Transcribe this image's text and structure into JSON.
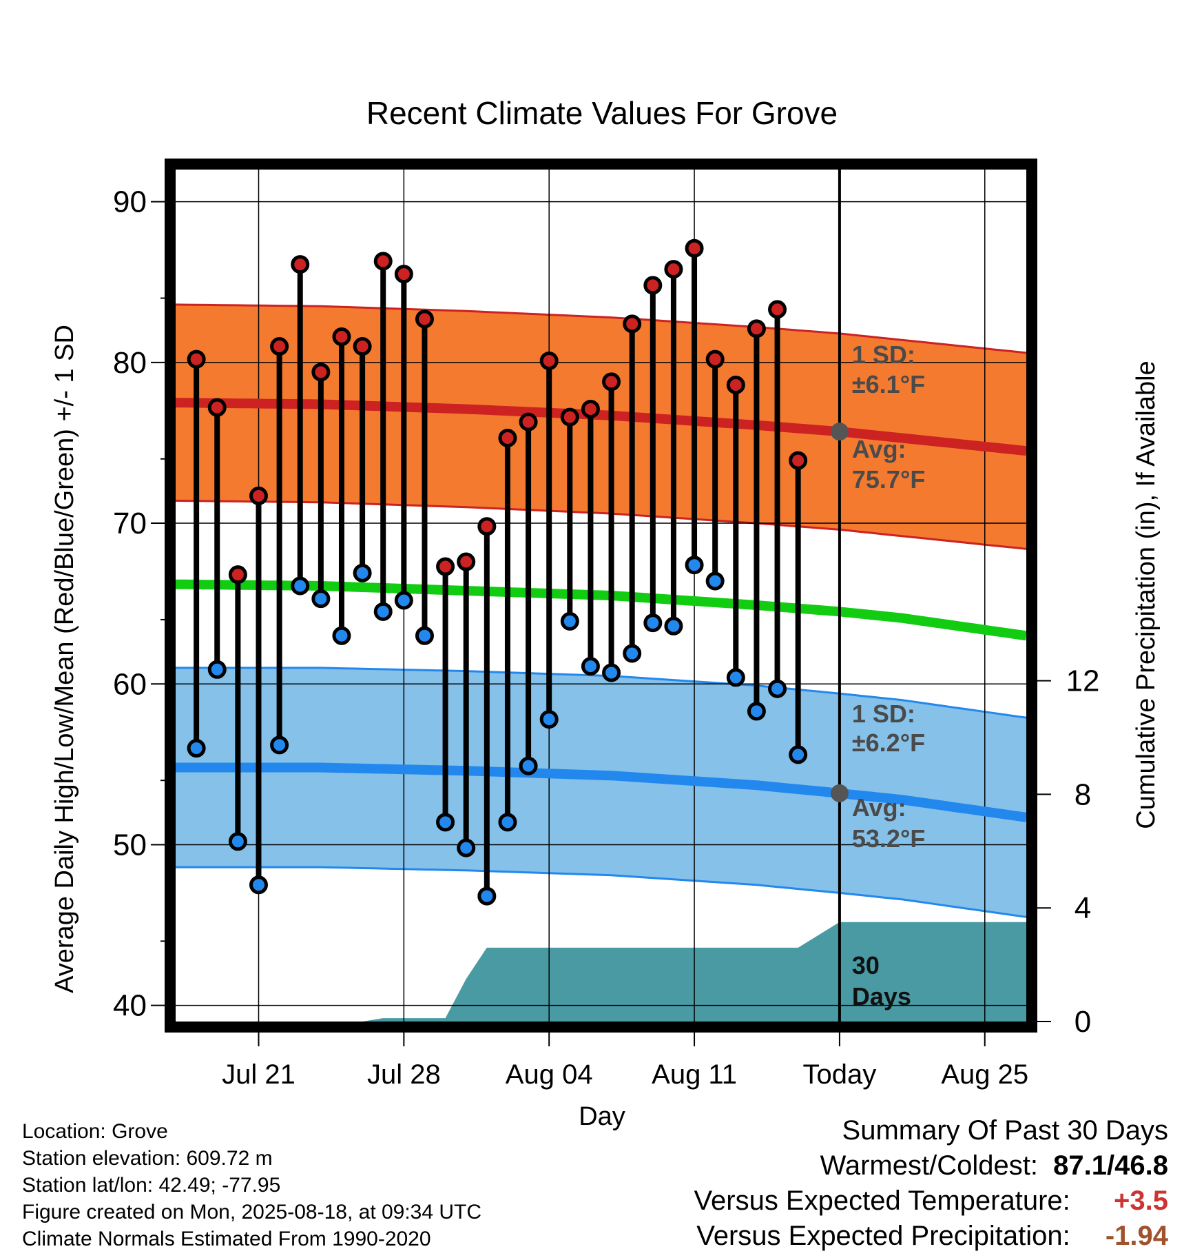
{
  "chart_data": {
    "type": "line",
    "title": "Recent Climate Values For Grove",
    "xlabel": "Day",
    "ylabel": "Average Daily High/Low/Mean (Red/Blue/Green) +/- 1 SD",
    "y2label": "Cumulative Precipitation (in), If Available",
    "ylim": [
      39,
      92
    ],
    "y2lim": [
      0,
      30
    ],
    "x_ticks": [
      {
        "date": "2025-07-21",
        "label": "Jul 21"
      },
      {
        "date": "2025-07-28",
        "label": "Jul 28"
      },
      {
        "date": "2025-08-04",
        "label": "Aug 04"
      },
      {
        "date": "2025-08-11",
        "label": "Aug 11"
      },
      {
        "date": "2025-08-18",
        "label": "Today"
      },
      {
        "date": "2025-08-25",
        "label": "Aug 25"
      }
    ],
    "x_range": [
      "2025-07-17",
      "2025-08-27"
    ],
    "y_ticks": [
      40,
      50,
      60,
      70,
      80,
      90
    ],
    "y2_ticks": [
      0,
      4,
      8,
      12
    ],
    "grid": true,
    "today": "2025-08-18",
    "normals": {
      "x": [
        "2025-07-17",
        "2025-07-24",
        "2025-07-31",
        "2025-08-07",
        "2025-08-14",
        "2025-08-18",
        "2025-08-21",
        "2025-08-27"
      ],
      "high_mean": [
        77.5,
        77.4,
        77.1,
        76.7,
        76.1,
        75.7,
        75.3,
        74.5
      ],
      "high_sd": 6.1,
      "low_mean": [
        54.8,
        54.8,
        54.6,
        54.3,
        53.7,
        53.2,
        52.8,
        51.7
      ],
      "low_sd": 6.2,
      "mean": [
        66.2,
        66.1,
        65.8,
        65.5,
        64.9,
        64.5,
        64.1,
        63.0
      ]
    },
    "series": [
      {
        "name": "High",
        "color": "#cc2222",
        "x": [
          "2025-07-18",
          "2025-07-19",
          "2025-07-20",
          "2025-07-21",
          "2025-07-22",
          "2025-07-23",
          "2025-07-24",
          "2025-07-25",
          "2025-07-26",
          "2025-07-27",
          "2025-07-28",
          "2025-07-29",
          "2025-07-30",
          "2025-07-31",
          "2025-08-01",
          "2025-08-02",
          "2025-08-03",
          "2025-08-04",
          "2025-08-05",
          "2025-08-06",
          "2025-08-07",
          "2025-08-08",
          "2025-08-09",
          "2025-08-10",
          "2025-08-11",
          "2025-08-12",
          "2025-08-13",
          "2025-08-14",
          "2025-08-15",
          "2025-08-16",
          "2025-08-17"
        ],
        "values": [
          80.2,
          77.2,
          66.8,
          71.7,
          81.0,
          86.1,
          79.4,
          81.6,
          81.0,
          86.3,
          85.5,
          82.7,
          67.3,
          67.6,
          69.8,
          75.3,
          76.3,
          80.1,
          76.6,
          77.1,
          78.8,
          82.4,
          84.8,
          85.8,
          87.1,
          80.2,
          78.6,
          82.1,
          83.3,
          73.9,
          null
        ]
      },
      {
        "name": "Low",
        "color": "#2288ee",
        "x": [
          "2025-07-18",
          "2025-07-19",
          "2025-07-20",
          "2025-07-21",
          "2025-07-22",
          "2025-07-23",
          "2025-07-24",
          "2025-07-25",
          "2025-07-26",
          "2025-07-27",
          "2025-07-28",
          "2025-07-29",
          "2025-07-30",
          "2025-07-31",
          "2025-08-01",
          "2025-08-02",
          "2025-08-03",
          "2025-08-04",
          "2025-08-05",
          "2025-08-06",
          "2025-08-07",
          "2025-08-08",
          "2025-08-09",
          "2025-08-10",
          "2025-08-11",
          "2025-08-12",
          "2025-08-13",
          "2025-08-14",
          "2025-08-15",
          "2025-08-16",
          "2025-08-17"
        ],
        "values": [
          56.0,
          60.9,
          50.2,
          47.5,
          56.2,
          66.1,
          65.3,
          63.0,
          66.9,
          64.5,
          65.2,
          63.0,
          51.4,
          49.8,
          46.8,
          51.4,
          54.9,
          57.8,
          63.9,
          61.1,
          60.7,
          61.9,
          63.8,
          63.6,
          67.4,
          66.4,
          60.4,
          58.3,
          59.7,
          55.6,
          null
        ]
      },
      {
        "name": "Precipitation",
        "color": "#4a9aa4",
        "x": [
          "2025-07-17",
          "2025-07-26",
          "2025-07-27",
          "2025-07-30",
          "2025-07-31",
          "2025-08-01",
          "2025-08-15",
          "2025-08-16",
          "2025-08-18",
          "2025-08-27"
        ],
        "values": [
          0.0,
          0.0,
          0.12,
          0.12,
          1.5,
          2.6,
          2.6,
          2.6,
          3.5,
          3.5
        ]
      }
    ],
    "annotations": {
      "high_sd_label": "1 SD:",
      "high_sd_value": "±6.1°F",
      "high_avg_label": "Avg:",
      "high_avg_value": "75.7°F",
      "low_sd_label": "1 SD:",
      "low_sd_value": "±6.2°F",
      "low_avg_label": "Avg:",
      "low_avg_value": "53.2°F",
      "days_line1": "30",
      "days_line2": "Days"
    }
  },
  "info": {
    "location": "Location: Grove",
    "elevation": "Station elevation: 609.72 m",
    "latlon": "Station lat/lon: 42.49; -77.95",
    "created": "Figure created on Mon, 2025-08-18, at 09:34 UTC",
    "normals": "Climate Normals Estimated From 1990-2020"
  },
  "summary": {
    "title": "Summary Of Past 30 Days",
    "warm_cold_label": "Warmest/Coldest:",
    "warm_cold_value": "87.1/46.8",
    "temp_label": "Versus Expected Temperature:",
    "temp_value": "+3.5",
    "temp_color": "#cc3333",
    "precip_label": "Versus Expected Precipitation:",
    "precip_value": "-1.94",
    "precip_color": "#a0522d"
  },
  "colors": {
    "high_band": "#f47a30",
    "high_line": "#cc2222",
    "low_band": "#85c1e9",
    "low_line": "#2288ee",
    "mean_line": "#11cc11",
    "precip_fill": "#4a9aa4",
    "today_marker": "#555555",
    "annotation_text": "#4a4a4a"
  }
}
